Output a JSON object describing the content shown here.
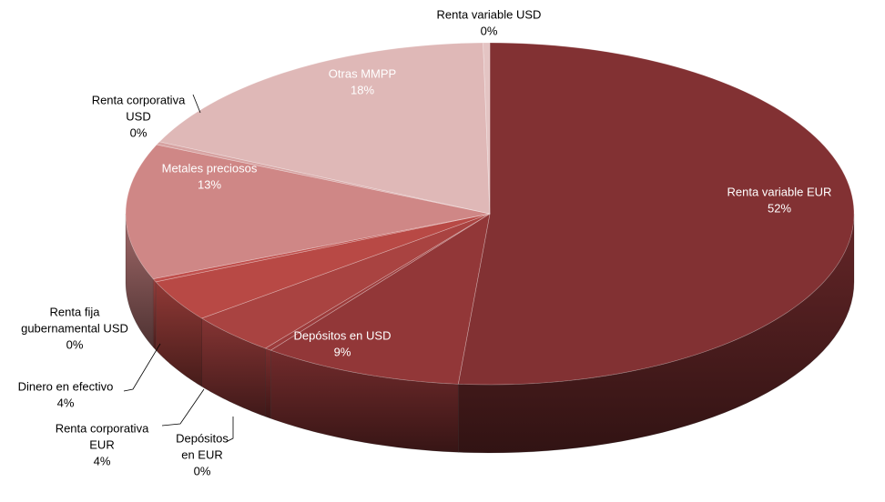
{
  "chart_data": {
    "type": "pie",
    "style": "3d",
    "title": "",
    "legend": "none",
    "slices": [
      {
        "name": "Renta variable EUR",
        "label_lines": [
          "Renta variable EUR"
        ],
        "value": 52,
        "value_label": "52%",
        "color": "#823133"
      },
      {
        "name": "Depósitos en USD",
        "label_lines": [
          "Depósitos en USD"
        ],
        "value": 9,
        "value_label": "9%",
        "color": "#923738"
      },
      {
        "name": "Depósitos en EUR",
        "label_lines": [
          "Depósitos",
          "en EUR"
        ],
        "value": 0.3,
        "value_label": "0%",
        "color": "#9c3b3b"
      },
      {
        "name": "Renta corporativa EUR",
        "label_lines": [
          "Renta corporativa",
          "EUR"
        ],
        "value": 4,
        "value_label": "4%",
        "color": "#a94341"
      },
      {
        "name": "Dinero en efectivo",
        "label_lines": [
          "Dinero en efectivo"
        ],
        "value": 4,
        "value_label": "4%",
        "color": "#b84945"
      },
      {
        "name": "Renta fija gubernamental USD",
        "label_lines": [
          "Renta fija",
          "gubernamental USD"
        ],
        "value": 0.3,
        "value_label": "0%",
        "color": "#c0504d"
      },
      {
        "name": "Metales preciosos",
        "label_lines": [
          "Metales preciosos"
        ],
        "value": 13,
        "value_label": "13%",
        "color": "#cf8786"
      },
      {
        "name": "Renta corporativa USD",
        "label_lines": [
          "Renta corporativa",
          "USD"
        ],
        "value": 0.3,
        "value_label": "0%",
        "color": "#d7a4a3"
      },
      {
        "name": "Otras MMPP",
        "label_lines": [
          "Otras MMPP"
        ],
        "value": 18,
        "value_label": "18%",
        "color": "#dfb8b7"
      },
      {
        "name": "Renta variable USD",
        "label_lines": [
          "Renta variable USD"
        ],
        "value": 0.3,
        "value_label": "0%",
        "color": "#e4c4c3"
      }
    ]
  }
}
